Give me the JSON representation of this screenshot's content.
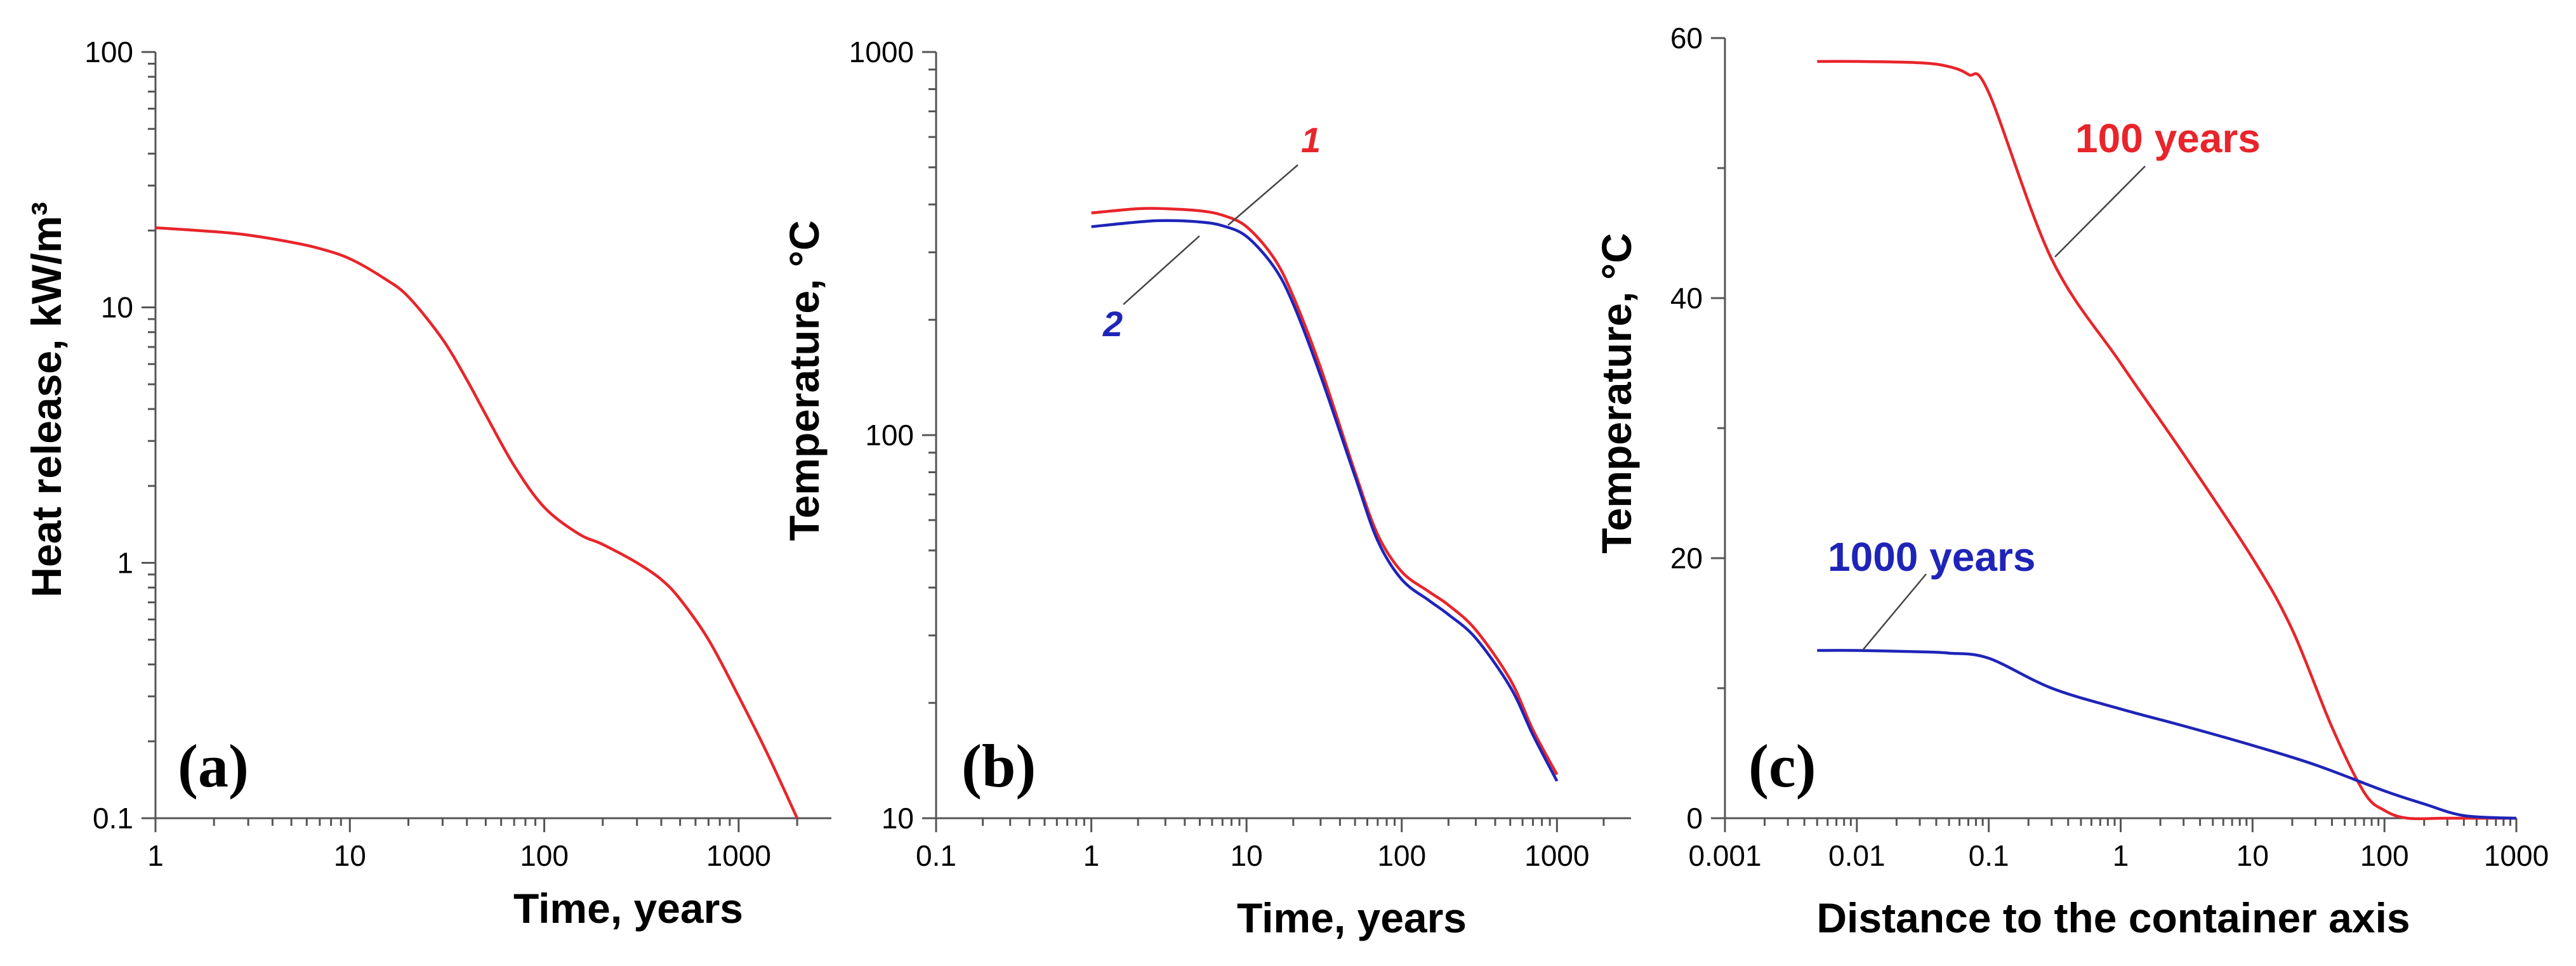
{
  "chart_data": [
    {
      "type": "line",
      "panel_label": "(a)",
      "xlabel": "Time, years",
      "ylabel": "Heat release, kW/m³",
      "x_scale": "log",
      "y_scale": "log",
      "xlim": [
        1,
        3000
      ],
      "ylim": [
        0.1,
        100
      ],
      "x_ticks": [
        1,
        10,
        100,
        1000
      ],
      "x_tick_labels": [
        "1",
        "10",
        "100",
        "1000"
      ],
      "y_ticks": [
        0.1,
        1,
        10,
        100
      ],
      "y_tick_labels": [
        "0.1",
        "1",
        "10",
        "100"
      ],
      "grid": false,
      "series": [
        {
          "color": "#e8252b",
          "x": [
            1,
            2,
            3,
            5,
            7,
            10,
            15,
            20,
            30,
            40,
            50,
            70,
            100,
            150,
            200,
            300,
            400,
            500,
            700,
            1000,
            1400,
            2000
          ],
          "y": [
            20.5,
            19.8,
            19.2,
            18,
            17,
            15.5,
            13,
            11,
            7.5,
            5.2,
            3.8,
            2.4,
            1.65,
            1.3,
            1.18,
            1.0,
            0.86,
            0.72,
            0.5,
            0.3,
            0.18,
            0.1
          ]
        }
      ]
    },
    {
      "type": "line",
      "panel_label": "(b)",
      "xlabel": "Time, years",
      "ylabel": "Temperature, °C",
      "x_scale": "log",
      "y_scale": "log",
      "xlim": [
        0.1,
        3000
      ],
      "ylim": [
        10,
        1000
      ],
      "x_ticks": [
        0.1,
        1,
        10,
        100,
        1000
      ],
      "x_tick_labels": [
        "0.1",
        "1",
        "10",
        "100",
        "1000"
      ],
      "y_ticks": [
        10,
        100,
        1000
      ],
      "y_tick_labels": [
        "10",
        "100",
        "1000"
      ],
      "grid": false,
      "series": [
        {
          "name": "1",
          "color": "#e8252b",
          "x": [
            1,
            2,
            3,
            5,
            7,
            10,
            15,
            20,
            30,
            50,
            70,
            100,
            150,
            200,
            300,
            500,
            700,
            1000
          ],
          "y": [
            380,
            390,
            390,
            385,
            375,
            350,
            290,
            230,
            150,
            80,
            55,
            44,
            39,
            36,
            31,
            23,
            17,
            13
          ]
        },
        {
          "name": "2",
          "color": "#1f24b8",
          "x": [
            1,
            2,
            3,
            5,
            7,
            10,
            15,
            20,
            30,
            50,
            70,
            100,
            150,
            200,
            300,
            500,
            700,
            1000
          ],
          "y": [
            350,
            360,
            363,
            360,
            352,
            330,
            275,
            220,
            143,
            78,
            53,
            42,
            37,
            34,
            29.5,
            22,
            16.5,
            12.5
          ]
        }
      ]
    },
    {
      "type": "line",
      "panel_label": "(c)",
      "xlabel": "Distance to the container axis",
      "ylabel": "Temperature, °C",
      "x_scale": "log",
      "y_scale": "linear",
      "xlim": [
        0.001,
        1000
      ],
      "ylim": [
        0,
        60
      ],
      "x_ticks": [
        0.001,
        0.01,
        0.1,
        1,
        10,
        100,
        1000
      ],
      "x_tick_labels": [
        "0.001",
        "0.01",
        "0.1",
        "1",
        "10",
        "100",
        "1000"
      ],
      "y_ticks": [
        0,
        20,
        40,
        60
      ],
      "y_tick_labels": [
        "0",
        "20",
        "40",
        "60"
      ],
      "grid": false,
      "series": [
        {
          "name": "100 years",
          "color": "#e8252b",
          "x": [
            0.005,
            0.01,
            0.03,
            0.05,
            0.07,
            0.1,
            0.3,
            1,
            3,
            10,
            20,
            40,
            70,
            100,
            150,
            300,
            1000
          ],
          "y": [
            58.2,
            58.2,
            58.1,
            57.8,
            57.2,
            55.8,
            43,
            35,
            28,
            20,
            14.5,
            7,
            2,
            0.6,
            0,
            0,
            0
          ]
        },
        {
          "name": "1000 years",
          "color": "#1f24b8",
          "x": [
            0.005,
            0.01,
            0.03,
            0.05,
            0.1,
            0.3,
            1,
            3,
            10,
            30,
            100,
            200,
            400,
            1000
          ],
          "y": [
            12.9,
            12.9,
            12.8,
            12.7,
            12.3,
            10,
            8.4,
            7.1,
            5.6,
            4.1,
            2.1,
            1.1,
            0.2,
            0
          ]
        }
      ]
    }
  ]
}
